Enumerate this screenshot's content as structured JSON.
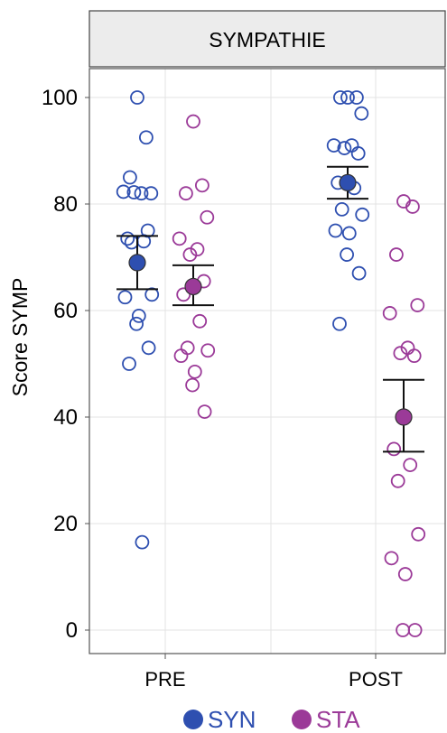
{
  "chart_data": {
    "type": "scatter",
    "title": "SYMPATHIE",
    "ylabel": "Score SYMP",
    "xlabel": "",
    "categories": [
      "PRE",
      "POST"
    ],
    "ylim": [
      -4,
      104
    ],
    "yticks": [
      0,
      20,
      40,
      60,
      80,
      100
    ],
    "ytick_labels": [
      "0",
      "20",
      "40",
      "60",
      "80",
      "100"
    ],
    "grid": true,
    "legend_position": "bottom",
    "colors": {
      "SYN": "#2e4fb0",
      "STA": "#9b3a98"
    },
    "series": [
      {
        "name": "SYN",
        "points": [
          {
            "category": "PRE",
            "values": [
              100,
              92.5,
              85,
              82,
              82.3,
              82,
              82.2,
              75,
              73.5,
              73,
              72.8,
              63,
              62.5,
              59,
              57.5,
              53,
              50,
              16.5
            ]
          },
          {
            "category": "POST",
            "values": [
              100,
              100,
              100,
              97,
              91,
              91,
              90.5,
              89.5,
              84,
              83,
              79,
              78,
              75,
              74.5,
              70.5,
              67,
              57.5
            ]
          }
        ],
        "mean": [
          69,
          84
        ],
        "error": [
          [
            64,
            74
          ],
          [
            81,
            87
          ]
        ]
      },
      {
        "name": "STA",
        "points": [
          {
            "category": "PRE",
            "values": [
              95.5,
              83.5,
              82,
              77.5,
              73.5,
              71.5,
              70.5,
              65.5,
              63,
              58,
              53,
              52.5,
              51.5,
              48.5,
              46,
              41
            ]
          },
          {
            "category": "POST",
            "values": [
              80.5,
              79.5,
              70.5,
              61,
              59.5,
              53,
              52,
              51.5,
              34,
              31,
              28,
              18,
              13.5,
              10.5,
              0,
              0
            ]
          }
        ],
        "mean": [
          64.5,
          40
        ],
        "error": [
          [
            61,
            68.5
          ],
          [
            33.5,
            47
          ]
        ]
      }
    ]
  },
  "legend": {
    "items": [
      {
        "label": "SYN",
        "color": "#2e4fb0"
      },
      {
        "label": "STA",
        "color": "#9b3a98"
      }
    ]
  }
}
